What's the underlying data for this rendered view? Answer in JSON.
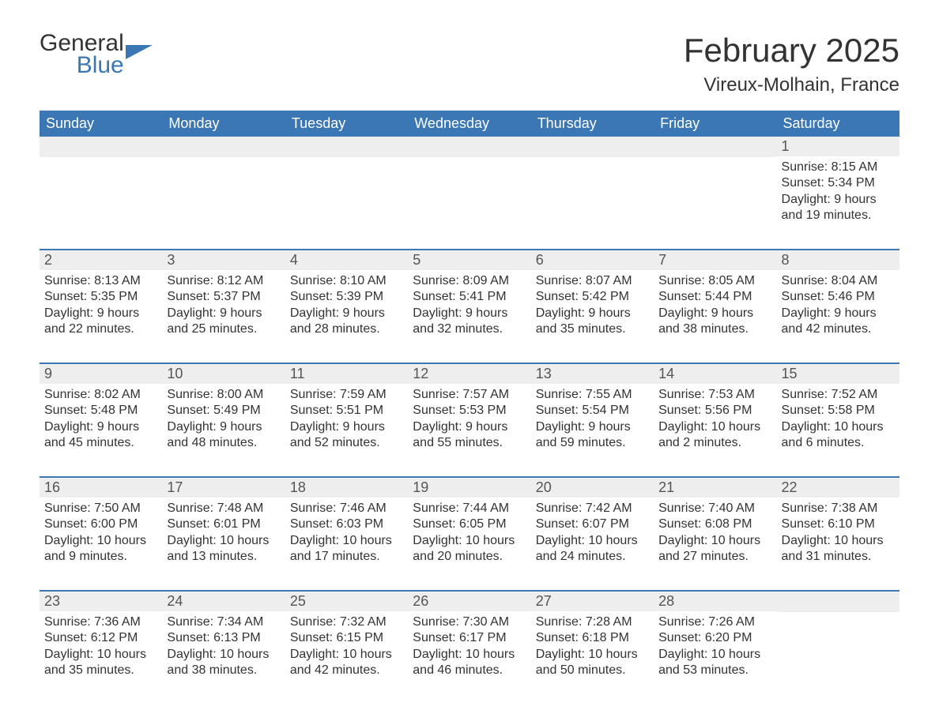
{
  "logo": {
    "general": "General",
    "blue": "Blue",
    "flag_color": "#3b77b5"
  },
  "title": "February 2025",
  "location": "Vireux-Molhain, France",
  "colors": {
    "header_bg": "#3b77b5",
    "header_text": "#ffffff",
    "daynum_bg": "#eeeeee",
    "border": "#3b77b5",
    "body_text": "#333333",
    "background": "#ffffff"
  },
  "typography": {
    "title_fontsize": 42,
    "location_fontsize": 24,
    "weekday_fontsize": 18,
    "daynum_fontsize": 18,
    "body_fontsize": 16,
    "font_family": "Arial"
  },
  "weekdays": [
    "Sunday",
    "Monday",
    "Tuesday",
    "Wednesday",
    "Thursday",
    "Friday",
    "Saturday"
  ],
  "weeks": [
    [
      {
        "day": "",
        "sunrise": "",
        "sunset": "",
        "daylight": ""
      },
      {
        "day": "",
        "sunrise": "",
        "sunset": "",
        "daylight": ""
      },
      {
        "day": "",
        "sunrise": "",
        "sunset": "",
        "daylight": ""
      },
      {
        "day": "",
        "sunrise": "",
        "sunset": "",
        "daylight": ""
      },
      {
        "day": "",
        "sunrise": "",
        "sunset": "",
        "daylight": ""
      },
      {
        "day": "",
        "sunrise": "",
        "sunset": "",
        "daylight": ""
      },
      {
        "day": "1",
        "sunrise": "Sunrise: 8:15 AM",
        "sunset": "Sunset: 5:34 PM",
        "daylight": "Daylight: 9 hours and 19 minutes."
      }
    ],
    [
      {
        "day": "2",
        "sunrise": "Sunrise: 8:13 AM",
        "sunset": "Sunset: 5:35 PM",
        "daylight": "Daylight: 9 hours and 22 minutes."
      },
      {
        "day": "3",
        "sunrise": "Sunrise: 8:12 AM",
        "sunset": "Sunset: 5:37 PM",
        "daylight": "Daylight: 9 hours and 25 minutes."
      },
      {
        "day": "4",
        "sunrise": "Sunrise: 8:10 AM",
        "sunset": "Sunset: 5:39 PM",
        "daylight": "Daylight: 9 hours and 28 minutes."
      },
      {
        "day": "5",
        "sunrise": "Sunrise: 8:09 AM",
        "sunset": "Sunset: 5:41 PM",
        "daylight": "Daylight: 9 hours and 32 minutes."
      },
      {
        "day": "6",
        "sunrise": "Sunrise: 8:07 AM",
        "sunset": "Sunset: 5:42 PM",
        "daylight": "Daylight: 9 hours and 35 minutes."
      },
      {
        "day": "7",
        "sunrise": "Sunrise: 8:05 AM",
        "sunset": "Sunset: 5:44 PM",
        "daylight": "Daylight: 9 hours and 38 minutes."
      },
      {
        "day": "8",
        "sunrise": "Sunrise: 8:04 AM",
        "sunset": "Sunset: 5:46 PM",
        "daylight": "Daylight: 9 hours and 42 minutes."
      }
    ],
    [
      {
        "day": "9",
        "sunrise": "Sunrise: 8:02 AM",
        "sunset": "Sunset: 5:48 PM",
        "daylight": "Daylight: 9 hours and 45 minutes."
      },
      {
        "day": "10",
        "sunrise": "Sunrise: 8:00 AM",
        "sunset": "Sunset: 5:49 PM",
        "daylight": "Daylight: 9 hours and 48 minutes."
      },
      {
        "day": "11",
        "sunrise": "Sunrise: 7:59 AM",
        "sunset": "Sunset: 5:51 PM",
        "daylight": "Daylight: 9 hours and 52 minutes."
      },
      {
        "day": "12",
        "sunrise": "Sunrise: 7:57 AM",
        "sunset": "Sunset: 5:53 PM",
        "daylight": "Daylight: 9 hours and 55 minutes."
      },
      {
        "day": "13",
        "sunrise": "Sunrise: 7:55 AM",
        "sunset": "Sunset: 5:54 PM",
        "daylight": "Daylight: 9 hours and 59 minutes."
      },
      {
        "day": "14",
        "sunrise": "Sunrise: 7:53 AM",
        "sunset": "Sunset: 5:56 PM",
        "daylight": "Daylight: 10 hours and 2 minutes."
      },
      {
        "day": "15",
        "sunrise": "Sunrise: 7:52 AM",
        "sunset": "Sunset: 5:58 PM",
        "daylight": "Daylight: 10 hours and 6 minutes."
      }
    ],
    [
      {
        "day": "16",
        "sunrise": "Sunrise: 7:50 AM",
        "sunset": "Sunset: 6:00 PM",
        "daylight": "Daylight: 10 hours and 9 minutes."
      },
      {
        "day": "17",
        "sunrise": "Sunrise: 7:48 AM",
        "sunset": "Sunset: 6:01 PM",
        "daylight": "Daylight: 10 hours and 13 minutes."
      },
      {
        "day": "18",
        "sunrise": "Sunrise: 7:46 AM",
        "sunset": "Sunset: 6:03 PM",
        "daylight": "Daylight: 10 hours and 17 minutes."
      },
      {
        "day": "19",
        "sunrise": "Sunrise: 7:44 AM",
        "sunset": "Sunset: 6:05 PM",
        "daylight": "Daylight: 10 hours and 20 minutes."
      },
      {
        "day": "20",
        "sunrise": "Sunrise: 7:42 AM",
        "sunset": "Sunset: 6:07 PM",
        "daylight": "Daylight: 10 hours and 24 minutes."
      },
      {
        "day": "21",
        "sunrise": "Sunrise: 7:40 AM",
        "sunset": "Sunset: 6:08 PM",
        "daylight": "Daylight: 10 hours and 27 minutes."
      },
      {
        "day": "22",
        "sunrise": "Sunrise: 7:38 AM",
        "sunset": "Sunset: 6:10 PM",
        "daylight": "Daylight: 10 hours and 31 minutes."
      }
    ],
    [
      {
        "day": "23",
        "sunrise": "Sunrise: 7:36 AM",
        "sunset": "Sunset: 6:12 PM",
        "daylight": "Daylight: 10 hours and 35 minutes."
      },
      {
        "day": "24",
        "sunrise": "Sunrise: 7:34 AM",
        "sunset": "Sunset: 6:13 PM",
        "daylight": "Daylight: 10 hours and 38 minutes."
      },
      {
        "day": "25",
        "sunrise": "Sunrise: 7:32 AM",
        "sunset": "Sunset: 6:15 PM",
        "daylight": "Daylight: 10 hours and 42 minutes."
      },
      {
        "day": "26",
        "sunrise": "Sunrise: 7:30 AM",
        "sunset": "Sunset: 6:17 PM",
        "daylight": "Daylight: 10 hours and 46 minutes."
      },
      {
        "day": "27",
        "sunrise": "Sunrise: 7:28 AM",
        "sunset": "Sunset: 6:18 PM",
        "daylight": "Daylight: 10 hours and 50 minutes."
      },
      {
        "day": "28",
        "sunrise": "Sunrise: 7:26 AM",
        "sunset": "Sunset: 6:20 PM",
        "daylight": "Daylight: 10 hours and 53 minutes."
      },
      {
        "day": "",
        "sunrise": "",
        "sunset": "",
        "daylight": ""
      }
    ]
  ]
}
